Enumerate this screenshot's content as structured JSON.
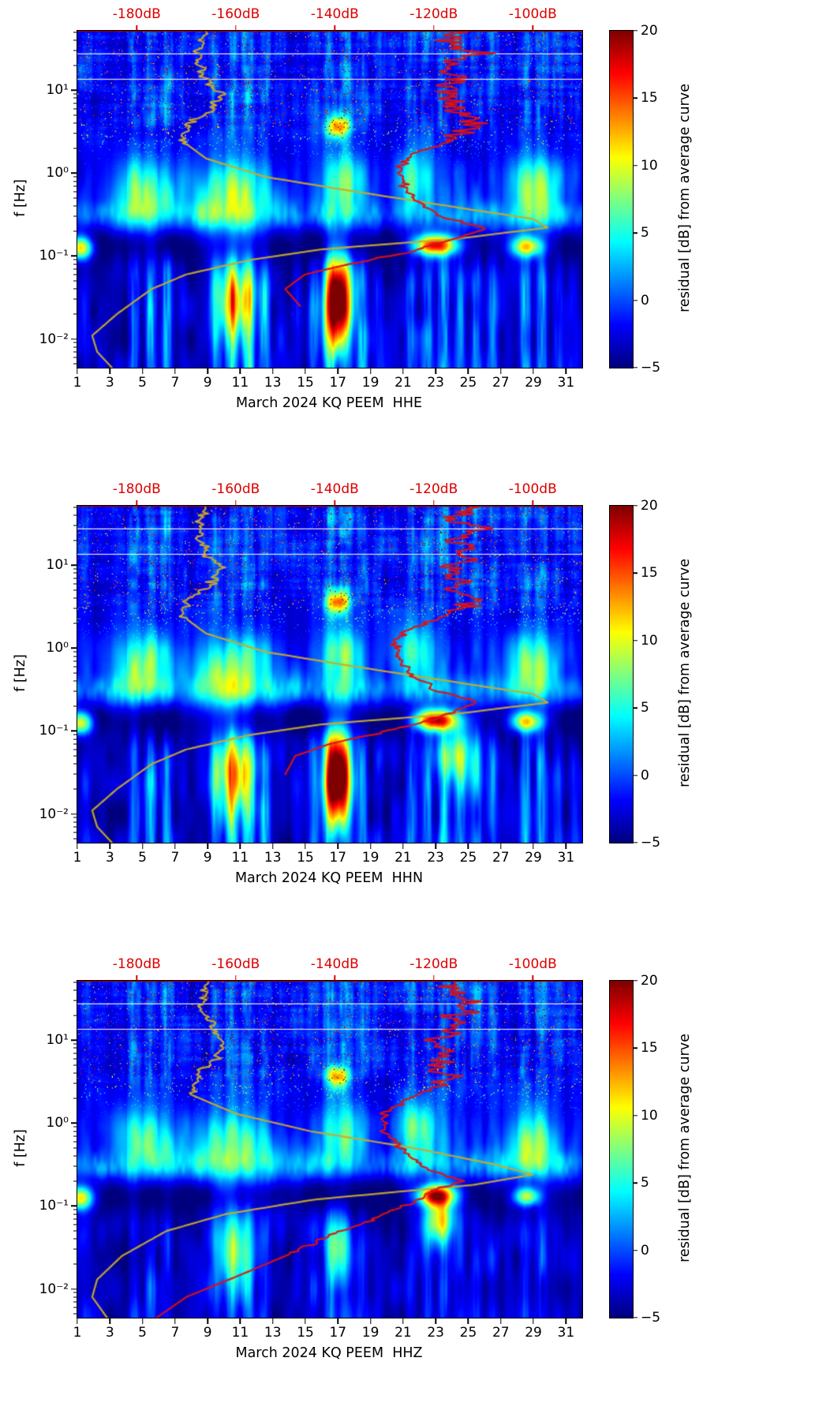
{
  "chart_data": {
    "type": "heatmap",
    "colormap": "jet",
    "colorbar": {
      "label": "residual [dB] from average curve",
      "ticks": [
        20,
        15,
        10,
        5,
        0,
        -5
      ],
      "vmin": -5,
      "vmax": 20
    },
    "x_axis": {
      "range": [
        1,
        32
      ],
      "ticks": [
        1,
        3,
        5,
        7,
        9,
        11,
        13,
        15,
        17,
        19,
        21,
        23,
        25,
        27,
        29,
        31
      ]
    },
    "y_axis": {
      "label": "f [Hz]",
      "scale": "log",
      "range": [
        0.0045,
        52
      ],
      "ticks": [
        {
          "f": 0.01,
          "label": "10⁻²"
        },
        {
          "f": 0.1,
          "label": "10⁻¹"
        },
        {
          "f": 1,
          "label": "10⁰"
        },
        {
          "f": 10,
          "label": "10¹"
        }
      ]
    },
    "top_axis": {
      "color": "#dd0000",
      "range": [
        -192,
        -90
      ],
      "labels": [
        {
          "db": -180,
          "text": "-180dB"
        },
        {
          "db": -160,
          "text": "-160dB"
        },
        {
          "db": -140,
          "text": "-140dB"
        },
        {
          "db": -120,
          "text": "-120dB"
        },
        {
          "db": -100,
          "text": "-100dB"
        }
      ]
    },
    "reference_lines_hz": [
      27.5,
      13.8
    ],
    "activity": [
      0.55,
      0.25,
      0.3,
      0.8,
      0.9,
      0.85,
      0.5,
      0.35,
      0.75,
      0.9,
      0.95,
      0.8,
      0.45,
      0.4,
      0.5,
      0.8,
      1.0,
      0.7,
      0.5,
      0.4,
      0.75,
      0.85,
      0.9,
      0.7,
      0.8,
      0.7,
      0.35,
      0.8,
      0.9,
      0.6,
      0.5
    ],
    "low_amp": [
      3,
      1,
      1,
      7,
      9,
      8,
      2,
      1,
      6,
      11,
      12,
      8,
      2,
      2,
      6,
      9,
      5,
      7,
      3,
      2,
      6,
      7,
      9,
      6,
      7,
      6,
      2,
      8,
      9,
      4,
      3
    ],
    "panels": [
      {
        "xlabel": "March 2024 KQ PEEM  HHE",
        "seed": 11,
        "high_scale": 1.0,
        "low_scale": 1.0,
        "mid_scale": 1.0,
        "blobs": [
          {
            "d": 1.2,
            "f": 0.125,
            "sd": 0.55,
            "sf": 0.1,
            "a": 17
          },
          {
            "d": 23.0,
            "f": 0.135,
            "sd": 0.95,
            "sf": 0.09,
            "a": 22
          },
          {
            "d": 28.6,
            "f": 0.13,
            "sd": 0.7,
            "sf": 0.09,
            "a": 16
          },
          {
            "d": 17.0,
            "f": 0.028,
            "sd": 0.55,
            "sf": 0.4,
            "a": 27
          },
          {
            "d": 10.6,
            "f": 0.03,
            "sd": 0.9,
            "sf": 0.36,
            "a": 13
          },
          {
            "d": 5.0,
            "f": 0.6,
            "sd": 1.3,
            "sf": 0.3,
            "a": 8
          },
          {
            "d": 10.4,
            "f": 0.5,
            "sd": 1.8,
            "sf": 0.32,
            "a": 9
          },
          {
            "d": 17.2,
            "f": 0.8,
            "sd": 1.0,
            "sf": 0.28,
            "a": 7
          },
          {
            "d": 21.8,
            "f": 0.9,
            "sd": 0.9,
            "sf": 0.26,
            "a": 7
          },
          {
            "d": 29.0,
            "f": 0.6,
            "sd": 1.1,
            "sf": 0.3,
            "a": 9
          },
          {
            "d": 17.0,
            "f": 3.6,
            "sd": 0.5,
            "sf": 0.1,
            "a": 15
          }
        ],
        "curves": [
          {
            "name": "average-psd-curve",
            "color": "#c9aa2c",
            "width": 2.2,
            "jitter": 1.3,
            "jitter_above_lf": 0.35,
            "points": [
              [
                0.0045,
                -185
              ],
              [
                0.007,
                -188
              ],
              [
                0.011,
                -189
              ],
              [
                0.02,
                -184
              ],
              [
                0.04,
                -177
              ],
              [
                0.06,
                -170
              ],
              [
                0.09,
                -157
              ],
              [
                0.12,
                -143
              ],
              [
                0.16,
                -116
              ],
              [
                0.22,
                -97
              ],
              [
                0.28,
                -100
              ],
              [
                0.4,
                -117
              ],
              [
                0.6,
                -136
              ],
              [
                0.9,
                -154
              ],
              [
                1.5,
                -166
              ],
              [
                2.5,
                -171
              ],
              [
                4,
                -169
              ],
              [
                6,
                -165
              ],
              [
                9,
                -163
              ],
              [
                14,
                -166
              ],
              [
                22,
                -168
              ],
              [
                35,
                -167
              ],
              [
                50,
                -166
              ]
            ]
          },
          {
            "name": "daily-psd-curve",
            "color": "#dd1111",
            "width": 2.2,
            "jitter": 4.6,
            "jitter_above_lf": 0.45,
            "jitter_small": 1.2,
            "jitter_small_above_lf": -1.05,
            "points": [
              [
                0.025,
                -147
              ],
              [
                0.04,
                -150
              ],
              [
                0.06,
                -146
              ],
              [
                0.08,
                -137
              ],
              [
                0.1,
                -128
              ],
              [
                0.13,
                -122
              ],
              [
                0.17,
                -114
              ],
              [
                0.22,
                -110
              ],
              [
                0.3,
                -119
              ],
              [
                0.45,
                -124
              ],
              [
                0.7,
                -126
              ],
              [
                1.1,
                -127
              ],
              [
                1.7,
                -124
              ],
              [
                2.5,
                -117
              ],
              [
                3.5,
                -112
              ],
              [
                5,
                -114
              ],
              [
                7,
                -117
              ],
              [
                10,
                -118
              ],
              [
                14,
                -115
              ],
              [
                20,
                -117
              ],
              [
                28,
                -112
              ],
              [
                38,
                -116
              ],
              [
                50,
                -114
              ]
            ]
          }
        ]
      },
      {
        "xlabel": "March 2024 KQ PEEM  HHN",
        "seed": 22,
        "high_scale": 1.0,
        "low_scale": 1.0,
        "mid_scale": 1.0,
        "blobs": [
          {
            "d": 1.2,
            "f": 0.125,
            "sd": 0.55,
            "sf": 0.1,
            "a": 16
          },
          {
            "d": 23.0,
            "f": 0.135,
            "sd": 0.95,
            "sf": 0.09,
            "a": 23
          },
          {
            "d": 28.6,
            "f": 0.13,
            "sd": 0.7,
            "sf": 0.09,
            "a": 17
          },
          {
            "d": 17.0,
            "f": 0.028,
            "sd": 0.55,
            "sf": 0.4,
            "a": 28
          },
          {
            "d": 10.6,
            "f": 0.03,
            "sd": 0.9,
            "sf": 0.36,
            "a": 13
          },
          {
            "d": 24.5,
            "f": 0.05,
            "sd": 0.8,
            "sf": 0.3,
            "a": 10
          },
          {
            "d": 5.0,
            "f": 0.6,
            "sd": 1.3,
            "sf": 0.3,
            "a": 8
          },
          {
            "d": 10.4,
            "f": 0.5,
            "sd": 1.8,
            "sf": 0.32,
            "a": 9
          },
          {
            "d": 17.2,
            "f": 0.8,
            "sd": 1.0,
            "sf": 0.28,
            "a": 7
          },
          {
            "d": 21.8,
            "f": 0.9,
            "sd": 0.9,
            "sf": 0.26,
            "a": 7
          },
          {
            "d": 29.0,
            "f": 0.6,
            "sd": 1.1,
            "sf": 0.3,
            "a": 9
          },
          {
            "d": 17.0,
            "f": 3.6,
            "sd": 0.5,
            "sf": 0.1,
            "a": 15
          }
        ],
        "curves": [
          {
            "name": "average-psd-curve",
            "color": "#c9aa2c",
            "width": 2.2,
            "jitter": 1.3,
            "jitter_above_lf": 0.35,
            "points": [
              [
                0.0045,
                -185
              ],
              [
                0.007,
                -188
              ],
              [
                0.011,
                -189
              ],
              [
                0.02,
                -184
              ],
              [
                0.04,
                -177
              ],
              [
                0.06,
                -170
              ],
              [
                0.09,
                -157
              ],
              [
                0.12,
                -143
              ],
              [
                0.16,
                -116
              ],
              [
                0.22,
                -97
              ],
              [
                0.28,
                -100
              ],
              [
                0.4,
                -117
              ],
              [
                0.6,
                -136
              ],
              [
                0.9,
                -154
              ],
              [
                1.5,
                -166
              ],
              [
                2.5,
                -171
              ],
              [
                4,
                -169
              ],
              [
                6,
                -165
              ],
              [
                9,
                -163
              ],
              [
                14,
                -166
              ],
              [
                22,
                -168
              ],
              [
                35,
                -167
              ],
              [
                50,
                -166
              ]
            ]
          },
          {
            "name": "daily-psd-curve",
            "color": "#dd1111",
            "width": 2.2,
            "jitter": 4.6,
            "jitter_above_lf": 0.45,
            "jitter_small": 1.2,
            "jitter_small_above_lf": -1.05,
            "points": [
              [
                0.03,
                -150
              ],
              [
                0.05,
                -148
              ],
              [
                0.07,
                -141
              ],
              [
                0.09,
                -133
              ],
              [
                0.12,
                -124
              ],
              [
                0.16,
                -117
              ],
              [
                0.22,
                -111
              ],
              [
                0.3,
                -119
              ],
              [
                0.5,
                -125
              ],
              [
                0.8,
                -127
              ],
              [
                1.2,
                -128
              ],
              [
                1.8,
                -124
              ],
              [
                2.5,
                -118
              ],
              [
                3.5,
                -113
              ],
              [
                5,
                -114
              ],
              [
                7,
                -116
              ],
              [
                10,
                -117
              ],
              [
                14,
                -114
              ],
              [
                20,
                -116
              ],
              [
                28,
                -112
              ],
              [
                38,
                -115
              ],
              [
                50,
                -113
              ]
            ]
          }
        ]
      },
      {
        "xlabel": "March 2024 KQ PEEM  HHZ",
        "seed": 33,
        "high_scale": 1.0,
        "low_scale": 0.55,
        "mid_scale": 1.0,
        "blobs": [
          {
            "d": 1.2,
            "f": 0.125,
            "sd": 0.55,
            "sf": 0.1,
            "a": 16
          },
          {
            "d": 23.0,
            "f": 0.135,
            "sd": 0.85,
            "sf": 0.09,
            "a": 21
          },
          {
            "d": 28.6,
            "f": 0.13,
            "sd": 0.6,
            "sf": 0.08,
            "a": 14
          },
          {
            "d": 23.2,
            "f": 0.07,
            "sd": 0.7,
            "sf": 0.22,
            "a": 14
          },
          {
            "d": 17.0,
            "f": 0.03,
            "sd": 0.5,
            "sf": 0.35,
            "a": 12
          },
          {
            "d": 10.6,
            "f": 0.03,
            "sd": 0.8,
            "sf": 0.34,
            "a": 9
          },
          {
            "d": 5.0,
            "f": 0.6,
            "sd": 1.3,
            "sf": 0.3,
            "a": 8
          },
          {
            "d": 10.4,
            "f": 0.5,
            "sd": 1.8,
            "sf": 0.32,
            "a": 9
          },
          {
            "d": 17.2,
            "f": 0.8,
            "sd": 1.0,
            "sf": 0.28,
            "a": 7
          },
          {
            "d": 21.8,
            "f": 0.9,
            "sd": 0.9,
            "sf": 0.26,
            "a": 8
          },
          {
            "d": 29.0,
            "f": 0.6,
            "sd": 1.1,
            "sf": 0.3,
            "a": 9
          },
          {
            "d": 17.0,
            "f": 3.6,
            "sd": 0.5,
            "sf": 0.1,
            "a": 13
          }
        ],
        "curves": [
          {
            "name": "average-psd-curve",
            "color": "#c9aa2c",
            "width": 2.2,
            "jitter": 1.3,
            "jitter_above_lf": 0.35,
            "points": [
              [
                0.0045,
                -186
              ],
              [
                0.008,
                -189
              ],
              [
                0.013,
                -188
              ],
              [
                0.025,
                -183
              ],
              [
                0.05,
                -174
              ],
              [
                0.08,
                -162
              ],
              [
                0.12,
                -144
              ],
              [
                0.18,
                -112
              ],
              [
                0.24,
                -100
              ],
              [
                0.32,
                -108
              ],
              [
                0.5,
                -124
              ],
              [
                0.8,
                -145
              ],
              [
                1.3,
                -160
              ],
              [
                2.2,
                -169
              ],
              [
                4,
                -168
              ],
              [
                6,
                -164
              ],
              [
                9,
                -162
              ],
              [
                14,
                -165
              ],
              [
                25,
                -167
              ],
              [
                40,
                -166
              ],
              [
                50,
                -166
              ]
            ]
          },
          {
            "name": "daily-psd-curve",
            "color": "#dd1111",
            "width": 2.2,
            "jitter": 4.6,
            "jitter_above_lf": 0.45,
            "jitter_small": 1.2,
            "jitter_small_above_lf": -1.6,
            "points": [
              [
                0.0045,
                -176
              ],
              [
                0.008,
                -170
              ],
              [
                0.014,
                -160
              ],
              [
                0.025,
                -150
              ],
              [
                0.045,
                -141
              ],
              [
                0.07,
                -132
              ],
              [
                0.1,
                -126
              ],
              [
                0.14,
                -121
              ],
              [
                0.2,
                -115
              ],
              [
                0.3,
                -122
              ],
              [
                0.5,
                -127
              ],
              [
                0.8,
                -130
              ],
              [
                1.3,
                -130
              ],
              [
                2.0,
                -125
              ],
              [
                3.0,
                -118
              ],
              [
                5,
                -118
              ],
              [
                8,
                -119
              ],
              [
                12,
                -116
              ],
              [
                18,
                -118
              ],
              [
                26,
                -113
              ],
              [
                36,
                -116
              ],
              [
                50,
                -114
              ]
            ]
          }
        ]
      }
    ]
  }
}
